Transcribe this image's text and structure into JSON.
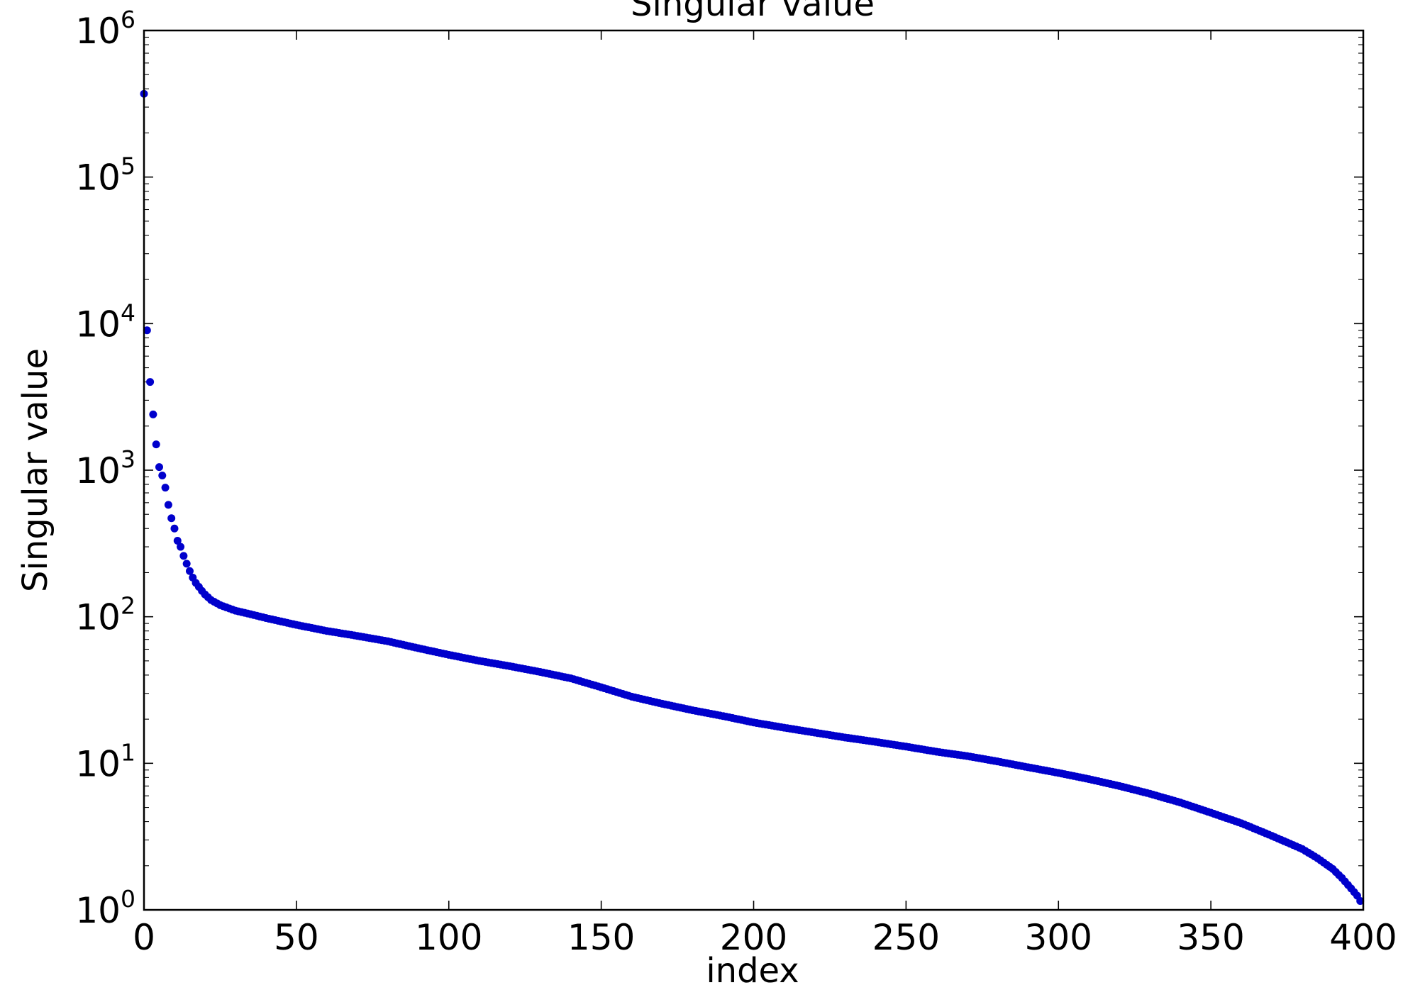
{
  "chart_data": {
    "type": "scatter",
    "title": "Singular value",
    "xlabel": "index",
    "ylabel": "Singular value",
    "xlim": [
      0,
      400
    ],
    "ylim": [
      1,
      1000000
    ],
    "yscale": "log",
    "grid": false,
    "legend": "none",
    "marker_color": "#0000cc",
    "x_ticks": [
      {
        "value": 0,
        "label": "0"
      },
      {
        "value": 50,
        "label": "50"
      },
      {
        "value": 100,
        "label": "100"
      },
      {
        "value": 150,
        "label": "150"
      },
      {
        "value": 200,
        "label": "200"
      },
      {
        "value": 250,
        "label": "250"
      },
      {
        "value": 300,
        "label": "300"
      },
      {
        "value": 350,
        "label": "350"
      },
      {
        "value": 400,
        "label": "400"
      }
    ],
    "y_ticks": [
      {
        "value": 1,
        "base": "10",
        "exp": "0"
      },
      {
        "value": 10,
        "base": "10",
        "exp": "1"
      },
      {
        "value": 100,
        "base": "10",
        "exp": "2"
      },
      {
        "value": 1000,
        "base": "10",
        "exp": "3"
      },
      {
        "value": 10000,
        "base": "10",
        "exp": "4"
      },
      {
        "value": 100000,
        "base": "10",
        "exp": "5"
      },
      {
        "value": 1000000,
        "base": "10",
        "exp": "6"
      }
    ],
    "series": [
      {
        "x_start": 0,
        "x_step": 1,
        "count": 400,
        "values_at": [
          [
            0,
            370000
          ],
          [
            1,
            9000
          ],
          [
            2,
            4000
          ],
          [
            3,
            2400
          ],
          [
            4,
            1500
          ],
          [
            5,
            1050
          ],
          [
            6,
            920
          ],
          [
            7,
            760
          ],
          [
            8,
            580
          ],
          [
            9,
            470
          ],
          [
            10,
            400
          ],
          [
            11,
            330
          ],
          [
            12,
            300
          ],
          [
            13,
            260
          ],
          [
            14,
            230
          ],
          [
            15,
            205
          ],
          [
            16,
            185
          ],
          [
            17,
            170
          ],
          [
            18,
            160
          ],
          [
            19,
            150
          ],
          [
            20,
            142
          ],
          [
            22,
            130
          ],
          [
            25,
            120
          ],
          [
            30,
            110
          ],
          [
            35,
            104
          ],
          [
            40,
            98
          ],
          [
            50,
            88
          ],
          [
            60,
            80
          ],
          [
            70,
            74
          ],
          [
            80,
            68
          ],
          [
            90,
            61
          ],
          [
            100,
            55
          ],
          [
            110,
            50
          ],
          [
            120,
            46
          ],
          [
            130,
            42
          ],
          [
            140,
            38
          ],
          [
            150,
            33
          ],
          [
            160,
            28.5
          ],
          [
            170,
            25.5
          ],
          [
            180,
            23
          ],
          [
            190,
            21
          ],
          [
            200,
            19
          ],
          [
            210,
            17.5
          ],
          [
            220,
            16.2
          ],
          [
            230,
            15
          ],
          [
            240,
            14
          ],
          [
            250,
            13
          ],
          [
            260,
            12
          ],
          [
            270,
            11.2
          ],
          [
            280,
            10.3
          ],
          [
            290,
            9.4
          ],
          [
            300,
            8.6
          ],
          [
            310,
            7.8
          ],
          [
            320,
            7
          ],
          [
            330,
            6.2
          ],
          [
            340,
            5.4
          ],
          [
            350,
            4.6
          ],
          [
            360,
            3.9
          ],
          [
            370,
            3.2
          ],
          [
            380,
            2.6
          ],
          [
            385,
            2.25
          ],
          [
            390,
            1.9
          ],
          [
            393,
            1.65
          ],
          [
            396,
            1.4
          ],
          [
            398,
            1.25
          ],
          [
            399,
            1.15
          ]
        ]
      }
    ]
  }
}
